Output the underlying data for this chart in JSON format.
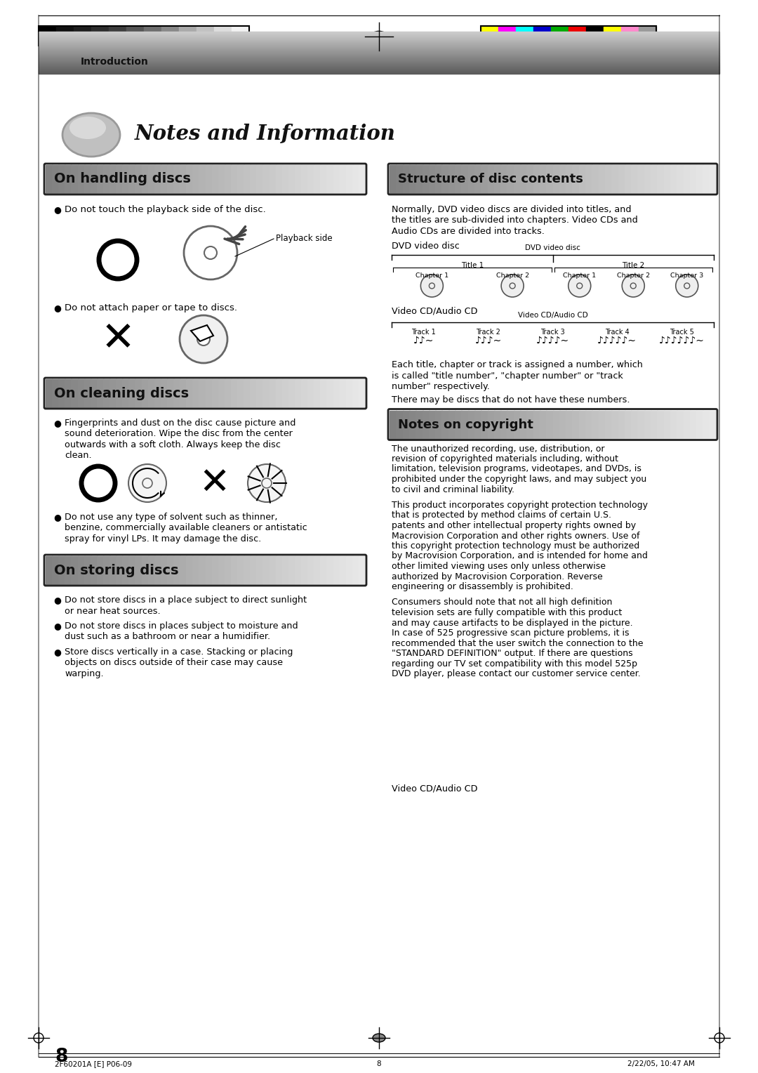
{
  "page_bg": "#ffffff",
  "header_text": "Introduction",
  "title_text": "Notes and Information",
  "section1_title": "On handling discs",
  "section2_title": "On cleaning discs",
  "section3_title": "On storing discs",
  "section4_title": "Structure of disc contents",
  "section5_title": "Notes on copyright",
  "handling_bullet1": "Do not touch the playback side of the disc.",
  "handling_bullet2": "Do not attach paper or tape to discs.",
  "handling_label": "Playback side",
  "cleaning_bullet1_lines": [
    "Fingerprints and dust on the disc cause picture and",
    "sound deterioration. Wipe the disc from the center",
    "outwards with a soft cloth. Always keep the disc",
    "clean."
  ],
  "cleaning_bullet2_lines": [
    "Do not use any type of solvent such as thinner,",
    "benzine, commercially available cleaners or antistatic",
    "spray for vinyl LPs. It may damage the disc."
  ],
  "storing_bullets": [
    [
      "Do not store discs in a place subject to direct sunlight",
      "or near heat sources."
    ],
    [
      "Do not store discs in places subject to moisture and",
      "dust such as a bathroom or near a humidifier."
    ],
    [
      "Store discs vertically in a case. Stacking or placing",
      "objects on discs outside of their case may cause",
      "warping."
    ]
  ],
  "structure_intro_lines": [
    "Normally, DVD video discs are divided into titles, and",
    "the titles are sub-divided into chapters. Video CDs and",
    "Audio CDs are divided into tracks."
  ],
  "dvd_label": "DVD video disc",
  "dvd_sub_label": "DVD video disc",
  "dvd_title1": "Title 1",
  "dvd_title2": "Title 2",
  "dvd_chapters": [
    "Chapter 1",
    "Chapter 2",
    "Chapter 1",
    "Chapter 2",
    "Chapter 3"
  ],
  "vcd_label": "Video CD/Audio CD",
  "vcd_sub_label": "Video CD/Audio CD",
  "vcd_tracks": [
    "Track 1",
    "Track 2",
    "Track 3",
    "Track 4",
    "Track 5"
  ],
  "structure_note1_lines": [
    "Each title, chapter or track is assigned a number, which",
    "is called \"title number\", \"chapter number\" or \"track",
    "number\" respectively."
  ],
  "structure_note2": "There may be discs that do not have these numbers.",
  "copyright_text1": "The unauthorized recording, use, distribution, or revision of copyrighted materials including, without limitation, television programs, videotapes, and DVDs, is prohibited under the copyright laws, and may subject you to civil and criminal liability.",
  "copyright_text2": "This product incorporates copyright protection technology that is protected by method claims of certain U.S. patents and other intellectual property rights owned by Macrovision Corporation and other rights owners. Use of this copyright protection technology must be authorized by Macrovision Corporation, and is intended for home and other limited viewing uses only unless otherwise authorized by Macrovision Corporation. Reverse engineering or disassembly is prohibited.",
  "copyright_text3": "Consumers should note that not all high definition television sets are fully compatible with this product and may cause artifacts to be displayed in the picture. In case of 525 progressive scan picture problems, it is recommended that the user switch the connection to the \"STANDARD DEFINITION\" output. If there are questions regarding our TV set compatibility with this model 525p DVD player, please contact our customer service center.",
  "page_number": "8",
  "footer_left": "2F60201A [E] P06-09",
  "footer_center": "8",
  "footer_right": "2/22/05, 10:47 AM",
  "colors_left": [
    "#000000",
    "#111111",
    "#1e1e1e",
    "#2d2d2d",
    "#3d3d3d",
    "#555555",
    "#6e6e6e",
    "#888888",
    "#aaaaaa",
    "#c2c2c2",
    "#dedede",
    "#f2f2f2"
  ],
  "colors_right": [
    "#ffff00",
    "#ff00ff",
    "#00ffff",
    "#0000cc",
    "#00aa00",
    "#ee0000",
    "#000000",
    "#ffff00",
    "#ff88cc",
    "#999999"
  ]
}
